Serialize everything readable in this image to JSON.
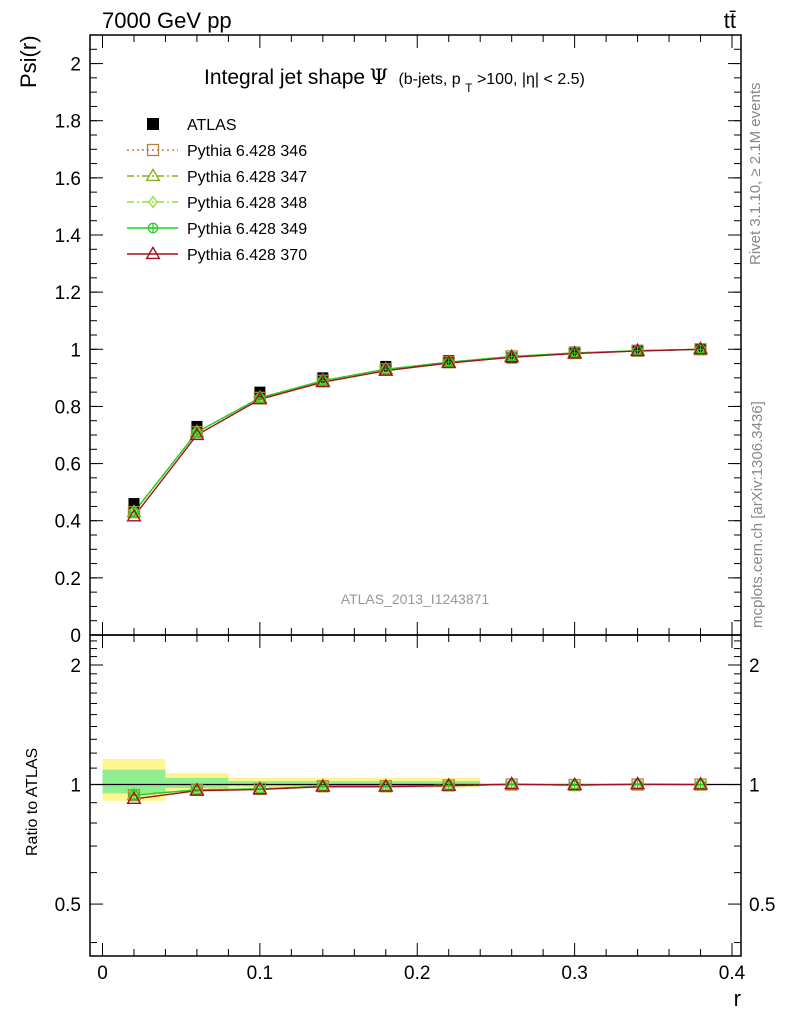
{
  "header": {
    "left": "7000 GeV pp",
    "right": "tt̄"
  },
  "side_text": {
    "rivet": "Rivet 3.1.10, ≥ 2.1M events",
    "mcplots": "mcplots.cern.ch [arXiv:1306.3436]"
  },
  "colors": {
    "atlas": "#000000",
    "p346": "#b08040",
    "p347": "#8cb01e",
    "p348": "#90e030",
    "p349": "#20d020",
    "p370": "#a01020",
    "band_yellow": "#fff68f",
    "band_green": "#90ee90"
  },
  "chart_data": [
    {
      "type": "line",
      "title_main": "Integral jet shape",
      "title_symbol": "Ψ",
      "title_detail_prefix": "(b-jets, p",
      "title_detail_sub": "T",
      "title_detail_suffix": ">100, |η| < 2.5)",
      "ylabel": "Psi(r)",
      "watermark": "ATLAS_2013_I1243871",
      "xlim": [
        -0.0,
        0.4
      ],
      "ylim": [
        0.0,
        2.1
      ],
      "yticks": [
        0,
        0.2,
        0.4,
        0.6,
        0.8,
        1,
        1.2,
        1.4,
        1.6,
        1.8,
        2
      ],
      "ytick_labels": [
        "0",
        "0.2",
        "0.4",
        "0.6",
        "0.8",
        "1",
        "1.2",
        "1.4",
        "1.6",
        "1.8",
        "2"
      ],
      "x": [
        0.02,
        0.06,
        0.1,
        0.14,
        0.18,
        0.22,
        0.26,
        0.3,
        0.34,
        0.38
      ],
      "data": {
        "name": "ATLAS",
        "values": [
          0.46,
          0.73,
          0.85,
          0.9,
          0.94,
          0.96,
          0.97,
          0.99,
          0.995,
          1.0
        ]
      },
      "series": [
        {
          "name": "Pythia 6.428 346",
          "style": "p346",
          "values": [
            0.43,
            0.71,
            0.83,
            0.89,
            0.93,
            0.955,
            0.975,
            0.987,
            0.995,
            1.0
          ]
        },
        {
          "name": "Pythia 6.428 347",
          "style": "p347",
          "values": [
            0.43,
            0.71,
            0.83,
            0.89,
            0.93,
            0.955,
            0.975,
            0.987,
            0.995,
            1.0
          ]
        },
        {
          "name": "Pythia 6.428 348",
          "style": "p348",
          "values": [
            0.43,
            0.71,
            0.83,
            0.89,
            0.93,
            0.955,
            0.975,
            0.987,
            0.995,
            1.0
          ]
        },
        {
          "name": "Pythia 6.428 349",
          "style": "p349",
          "values": [
            0.43,
            0.71,
            0.83,
            0.89,
            0.93,
            0.955,
            0.975,
            0.987,
            0.995,
            1.0
          ]
        },
        {
          "name": "Pythia 6.428 370",
          "style": "p370",
          "values": [
            0.415,
            0.7,
            0.825,
            0.885,
            0.925,
            0.952,
            0.972,
            0.985,
            0.994,
            1.0
          ]
        }
      ]
    },
    {
      "type": "line",
      "ylabel": "Ratio to ATLAS",
      "xlabel": "r",
      "xlim": [
        -0.0,
        0.4
      ],
      "ylim": [
        0.37,
        2.38
      ],
      "log_y": true,
      "xticks": [
        0,
        0.1,
        0.2,
        0.3,
        0.4
      ],
      "xtick_labels": [
        "0",
        "0.1",
        "0.2",
        "0.3",
        "0.4"
      ],
      "yticks": [
        0.5,
        1,
        2
      ],
      "ytick_labels": [
        "0.5",
        "1",
        "2"
      ],
      "band_edges": [
        0.0,
        0.04,
        0.08,
        0.12,
        0.16,
        0.2,
        0.24,
        0.28,
        0.32,
        0.36,
        0.4
      ],
      "band_yellow": [
        [
          0.91,
          1.16
        ],
        [
          0.96,
          1.07
        ],
        [
          0.98,
          1.04
        ],
        [
          0.98,
          1.04
        ],
        [
          0.98,
          1.04
        ],
        [
          0.98,
          1.04
        ],
        [
          0.995,
          1.005
        ],
        [
          0.995,
          1.005
        ],
        [
          0.995,
          1.005
        ],
        [
          0.995,
          1.005
        ]
      ],
      "band_green": [
        [
          0.95,
          1.09
        ],
        [
          0.98,
          1.04
        ],
        [
          0.99,
          1.02
        ],
        [
          0.99,
          1.02
        ],
        [
          0.99,
          1.02
        ],
        [
          0.99,
          1.02
        ],
        [
          0.998,
          1.002
        ],
        [
          0.998,
          1.002
        ],
        [
          0.998,
          1.002
        ],
        [
          0.998,
          1.002
        ]
      ],
      "x": [
        0.02,
        0.06,
        0.1,
        0.14,
        0.18,
        0.22,
        0.26,
        0.3,
        0.34,
        0.38
      ],
      "series": [
        {
          "name": "Pythia 6.428 346",
          "style": "p346",
          "values": [
            0.94,
            0.97,
            0.975,
            0.99,
            0.99,
            0.995,
            1.0,
            0.997,
            1.0,
            1.0
          ]
        },
        {
          "name": "Pythia 6.428 347",
          "style": "p347",
          "values": [
            0.94,
            0.97,
            0.975,
            0.99,
            0.99,
            0.995,
            1.0,
            0.997,
            1.0,
            1.0
          ]
        },
        {
          "name": "Pythia 6.428 348",
          "style": "p348",
          "values": [
            0.94,
            0.97,
            0.975,
            0.99,
            0.99,
            0.995,
            1.0,
            0.997,
            1.0,
            1.0
          ]
        },
        {
          "name": "Pythia 6.428 349",
          "style": "p349",
          "values": [
            0.94,
            0.97,
            0.975,
            0.99,
            0.99,
            0.995,
            1.0,
            0.997,
            1.0,
            1.0
          ]
        },
        {
          "name": "Pythia 6.428 370",
          "style": "p370",
          "values": [
            0.92,
            0.965,
            0.972,
            0.988,
            0.988,
            0.993,
            1.002,
            0.997,
            1.002,
            1.0
          ]
        }
      ]
    }
  ]
}
